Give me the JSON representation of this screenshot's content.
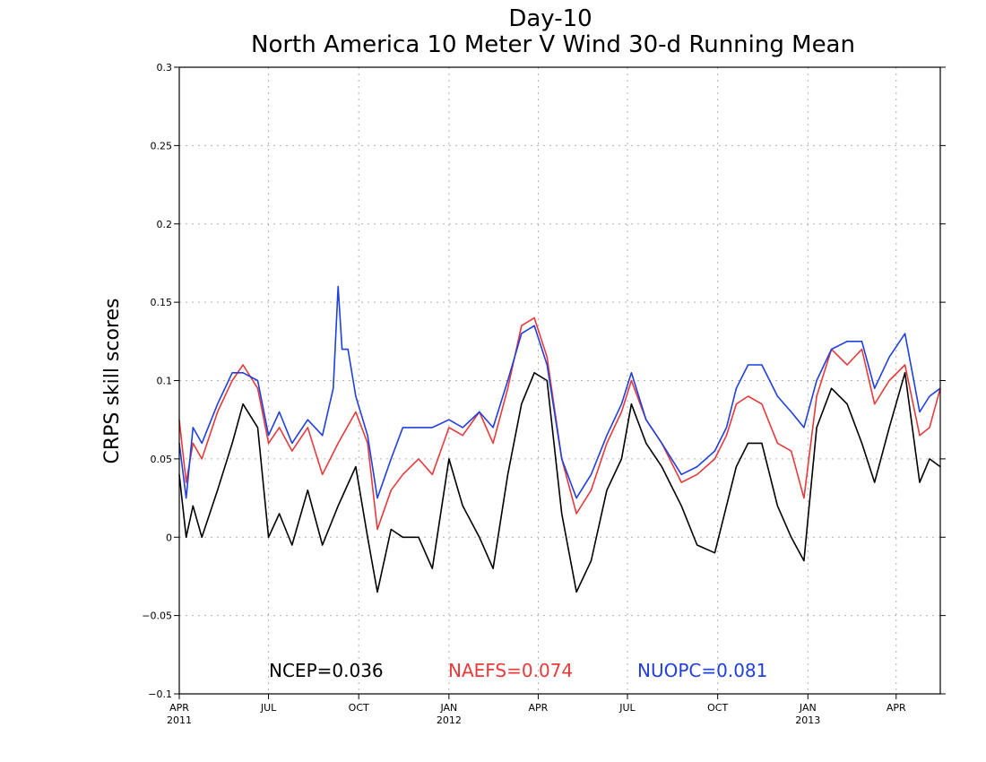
{
  "chart_data": {
    "type": "line",
    "title": "Day-10",
    "subtitle": "North America 10 Meter V Wind 30-d Running Mean",
    "ylabel": "CRPS skill scores",
    "xlabel": "",
    "ylim": [
      -0.1,
      0.3
    ],
    "xlim": [
      "2011-04-01",
      "2013-05-16"
    ],
    "grid": true,
    "yticks": [
      {
        "value": -0.1,
        "label": "−0.1"
      },
      {
        "value": -0.05,
        "label": "−0.05"
      },
      {
        "value": 0,
        "label": "0"
      },
      {
        "value": 0.05,
        "label": "0.05"
      },
      {
        "value": 0.1,
        "label": "0.1"
      },
      {
        "value": 0.15,
        "label": "0.15"
      },
      {
        "value": 0.2,
        "label": "0.2"
      },
      {
        "value": 0.25,
        "label": "0.25"
      },
      {
        "value": 0.3,
        "label": "0.3"
      }
    ],
    "xticks": [
      {
        "date": "2011-04-01",
        "label": "APR",
        "year": "2011"
      },
      {
        "date": "2011-07-01",
        "label": "JUL",
        "year": ""
      },
      {
        "date": "2011-10-01",
        "label": "OCT",
        "year": ""
      },
      {
        "date": "2012-01-01",
        "label": "JAN",
        "year": "2012"
      },
      {
        "date": "2012-04-01",
        "label": "APR",
        "year": ""
      },
      {
        "date": "2012-07-01",
        "label": "JUL",
        "year": ""
      },
      {
        "date": "2012-10-01",
        "label": "OCT",
        "year": ""
      },
      {
        "date": "2013-01-01",
        "label": "JAN",
        "year": "2013"
      },
      {
        "date": "2013-04-01",
        "label": "APR",
        "year": ""
      }
    ],
    "series": [
      {
        "name": "NCEP",
        "color": "#000000",
        "legend": "NCEP=0.036",
        "x": [
          "2011-04-01",
          "2011-04-08",
          "2011-04-15",
          "2011-04-24",
          "2011-05-10",
          "2011-05-25",
          "2011-06-05",
          "2011-06-20",
          "2011-07-01",
          "2011-07-12",
          "2011-07-25",
          "2011-08-10",
          "2011-08-25",
          "2011-09-10",
          "2011-09-28",
          "2011-10-10",
          "2011-10-20",
          "2011-11-03",
          "2011-11-15",
          "2011-12-01",
          "2011-12-15",
          "2012-01-01",
          "2012-01-15",
          "2012-02-01",
          "2012-02-15",
          "2012-03-01",
          "2012-03-15",
          "2012-03-28",
          "2012-04-10",
          "2012-04-25",
          "2012-05-10",
          "2012-05-25",
          "2012-06-10",
          "2012-06-25",
          "2012-07-05",
          "2012-07-20",
          "2012-08-05",
          "2012-08-25",
          "2012-09-10",
          "2012-09-28",
          "2012-10-10",
          "2012-10-20",
          "2012-11-01",
          "2012-11-15",
          "2012-12-01",
          "2012-12-15",
          "2012-12-28",
          "2013-01-10",
          "2013-01-25",
          "2013-02-10",
          "2013-02-25",
          "2013-03-10",
          "2013-03-25",
          "2013-04-10",
          "2013-04-25",
          "2013-05-05",
          "2013-05-16"
        ],
        "y": [
          0.04,
          0.0,
          0.02,
          0.0,
          0.03,
          0.06,
          0.085,
          0.07,
          0.0,
          0.015,
          -0.005,
          0.03,
          -0.005,
          0.02,
          0.045,
          0.0,
          -0.035,
          0.005,
          0.0,
          0.0,
          -0.02,
          0.05,
          0.02,
          0.0,
          -0.02,
          0.04,
          0.085,
          0.105,
          0.1,
          0.015,
          -0.035,
          -0.015,
          0.03,
          0.05,
          0.085,
          0.06,
          0.045,
          0.02,
          -0.005,
          -0.01,
          0.02,
          0.045,
          0.06,
          0.06,
          0.02,
          0.0,
          -0.015,
          0.07,
          0.095,
          0.085,
          0.06,
          0.035,
          0.07,
          0.105,
          0.035,
          0.05,
          0.045
        ]
      },
      {
        "name": "NAEFS",
        "color": "#e83a3a",
        "legend": "NAEFS=0.074",
        "x": [
          "2011-04-01",
          "2011-04-08",
          "2011-04-15",
          "2011-04-24",
          "2011-05-10",
          "2011-05-25",
          "2011-06-05",
          "2011-06-20",
          "2011-07-01",
          "2011-07-12",
          "2011-07-25",
          "2011-08-10",
          "2011-08-25",
          "2011-09-10",
          "2011-09-28",
          "2011-10-10",
          "2011-10-20",
          "2011-11-03",
          "2011-11-15",
          "2011-12-01",
          "2011-12-15",
          "2012-01-01",
          "2012-01-15",
          "2012-02-01",
          "2012-02-15",
          "2012-03-01",
          "2012-03-15",
          "2012-03-28",
          "2012-04-10",
          "2012-04-25",
          "2012-05-10",
          "2012-05-25",
          "2012-06-10",
          "2012-06-25",
          "2012-07-05",
          "2012-07-20",
          "2012-08-05",
          "2012-08-25",
          "2012-09-10",
          "2012-09-28",
          "2012-10-10",
          "2012-10-20",
          "2012-11-01",
          "2012-11-15",
          "2012-12-01",
          "2012-12-15",
          "2012-12-28",
          "2013-01-10",
          "2013-01-25",
          "2013-02-10",
          "2013-02-25",
          "2013-03-10",
          "2013-03-25",
          "2013-04-10",
          "2013-04-25",
          "2013-05-05",
          "2013-05-16"
        ],
        "y": [
          0.075,
          0.035,
          0.06,
          0.05,
          0.08,
          0.1,
          0.11,
          0.095,
          0.06,
          0.07,
          0.055,
          0.07,
          0.04,
          0.06,
          0.08,
          0.06,
          0.005,
          0.03,
          0.04,
          0.05,
          0.04,
          0.07,
          0.065,
          0.08,
          0.06,
          0.095,
          0.135,
          0.14,
          0.115,
          0.05,
          0.015,
          0.03,
          0.06,
          0.08,
          0.1,
          0.075,
          0.06,
          0.035,
          0.04,
          0.05,
          0.065,
          0.085,
          0.09,
          0.085,
          0.06,
          0.055,
          0.025,
          0.09,
          0.12,
          0.11,
          0.12,
          0.085,
          0.1,
          0.11,
          0.065,
          0.07,
          0.095
        ]
      },
      {
        "name": "NUOPC",
        "color": "#1f3fe0",
        "legend": "NUOPC=0.081",
        "x": [
          "2011-04-01",
          "2011-04-08",
          "2011-04-15",
          "2011-04-24",
          "2011-05-10",
          "2011-05-25",
          "2011-06-05",
          "2011-06-20",
          "2011-07-01",
          "2011-07-12",
          "2011-07-25",
          "2011-08-10",
          "2011-08-25",
          "2011-09-05",
          "2011-09-10",
          "2011-09-14",
          "2011-09-20",
          "2011-09-28",
          "2011-10-10",
          "2011-10-20",
          "2011-11-03",
          "2011-11-15",
          "2011-12-01",
          "2011-12-15",
          "2012-01-01",
          "2012-01-15",
          "2012-02-01",
          "2012-02-15",
          "2012-03-01",
          "2012-03-15",
          "2012-03-28",
          "2012-04-10",
          "2012-04-25",
          "2012-05-10",
          "2012-05-25",
          "2012-06-10",
          "2012-06-25",
          "2012-07-05",
          "2012-07-20",
          "2012-08-05",
          "2012-08-25",
          "2012-09-10",
          "2012-09-28",
          "2012-10-10",
          "2012-10-20",
          "2012-11-01",
          "2012-11-15",
          "2012-12-01",
          "2012-12-15",
          "2012-12-28",
          "2013-01-10",
          "2013-01-25",
          "2013-02-10",
          "2013-02-25",
          "2013-03-10",
          "2013-03-25",
          "2013-04-10",
          "2013-04-25",
          "2013-05-05",
          "2013-05-16"
        ],
        "y": [
          0.06,
          0.025,
          0.07,
          0.06,
          0.085,
          0.105,
          0.105,
          0.1,
          0.065,
          0.08,
          0.06,
          0.075,
          0.065,
          0.095,
          0.16,
          0.12,
          0.12,
          0.09,
          0.065,
          0.025,
          0.05,
          0.07,
          0.07,
          0.07,
          0.075,
          0.07,
          0.08,
          0.07,
          0.1,
          0.13,
          0.135,
          0.11,
          0.05,
          0.025,
          0.04,
          0.065,
          0.085,
          0.105,
          0.075,
          0.06,
          0.04,
          0.045,
          0.055,
          0.07,
          0.095,
          0.11,
          0.11,
          0.09,
          0.08,
          0.07,
          0.1,
          0.12,
          0.125,
          0.125,
          0.095,
          0.115,
          0.13,
          0.08,
          0.09,
          0.095
        ]
      }
    ]
  }
}
